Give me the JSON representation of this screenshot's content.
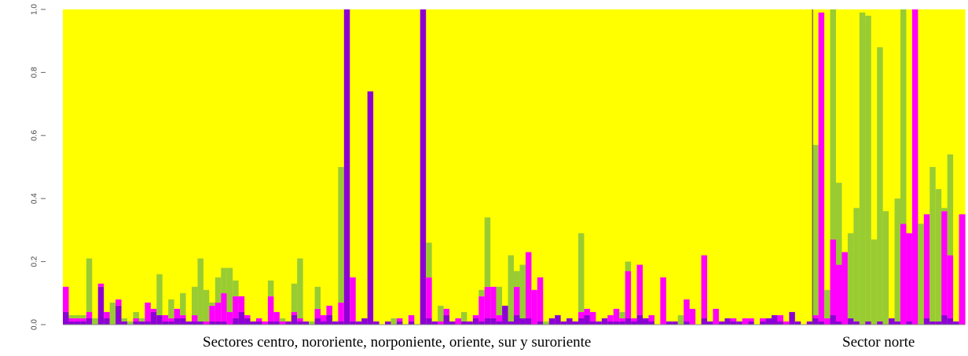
{
  "chart_data": {
    "type": "bar",
    "stacked": true,
    "normalized": true,
    "ylim": [
      0,
      1
    ],
    "yticks": [
      "0.0",
      "0.2",
      "0.4",
      "0.6",
      "0.8",
      "1.0"
    ],
    "colors": {
      "cluster_dark_purple": "#8c00d6",
      "cluster_magenta": "#ff00ff",
      "cluster_green": "#99cc33",
      "cluster_yellow": "#ffff00"
    },
    "group_labels": [
      "Sectores centro, nororiente, norponiente, oriente, sur y suroriente",
      "Sector norte"
    ],
    "group_sizes": [
      128,
      26
    ],
    "series_order": [
      "dark_purple",
      "magenta",
      "green"
    ],
    "values": {
      "dark_purple": [
        0.04,
        0.01,
        0.01,
        0.01,
        0.02,
        0.0,
        0.12,
        0.02,
        0.0,
        0.06,
        0.01,
        0.0,
        0.01,
        0.01,
        0.01,
        0.04,
        0.03,
        0.01,
        0.01,
        0.02,
        0.02,
        0.01,
        0.01,
        0.01,
        0.0,
        0.01,
        0.01,
        0.01,
        0.0,
        0.02,
        0.04,
        0.02,
        0.01,
        0.01,
        0.0,
        0.01,
        0.01,
        0.0,
        0.01,
        0.03,
        0.01,
        0.01,
        0.0,
        0.02,
        0.01,
        0.03,
        0.01,
        0.01,
        1.0,
        0.01,
        0.01,
        0.02,
        0.74,
        0.01,
        0.0,
        0.01,
        0.0,
        0.01,
        0.0,
        0.01,
        0.0,
        1.0,
        0.02,
        0.01,
        0.0,
        0.03,
        0.01,
        0.0,
        0.01,
        0.01,
        0.02,
        0.01,
        0.02,
        0.02,
        0.01,
        0.06,
        0.01,
        0.03,
        0.02,
        0.02,
        0.0,
        0.01,
        0.0,
        0.02,
        0.03,
        0.01,
        0.02,
        0.01,
        0.02,
        0.03,
        0.01,
        0.01,
        0.02,
        0.01,
        0.01,
        0.01,
        0.02,
        0.01,
        0.03,
        0.02,
        0.01,
        0.0,
        0.0,
        0.01,
        0.01,
        0.0,
        0.01,
        0.0,
        0.0,
        0.02,
        0.01,
        0.0,
        0.01,
        0.02,
        0.01,
        0.01,
        0.0,
        0.01,
        0.0,
        0.01,
        0.02,
        0.03,
        0.01,
        0.0,
        0.04,
        0.01,
        0.0,
        0.01,
        0.02,
        0.01,
        0.0,
        0.03,
        0.01,
        0.0,
        0.02,
        0.01,
        0.0,
        0.01,
        0.0,
        0.01,
        0.0,
        0.02,
        0.01,
        0.0,
        0.01,
        0.0,
        0.0,
        0.02,
        0.01,
        0.01,
        0.03,
        0.02,
        0.01,
        0.0
      ],
      "magenta": [
        0.08,
        0.01,
        0.01,
        0.01,
        0.02,
        0.0,
        0.01,
        0.02,
        0.0,
        0.02,
        0.0,
        0.0,
        0.01,
        0.0,
        0.06,
        0.01,
        0.0,
        0.02,
        0.01,
        0.03,
        0.01,
        0.0,
        0.02,
        0.0,
        0.01,
        0.05,
        0.06,
        0.09,
        0.04,
        0.07,
        0.05,
        0.01,
        0.0,
        0.01,
        0.01,
        0.08,
        0.03,
        0.01,
        0.0,
        0.01,
        0.01,
        0.0,
        0.0,
        0.03,
        0.02,
        0.03,
        0.0,
        0.06,
        0.0,
        0.14,
        0.0,
        0.0,
        0.0,
        0.0,
        0.0,
        0.0,
        0.0,
        0.01,
        0.0,
        0.02,
        0.0,
        0.0,
        0.13,
        0.0,
        0.01,
        0.02,
        0.0,
        0.02,
        0.0,
        0.0,
        0.01,
        0.08,
        0.1,
        0.1,
        0.02,
        0.0,
        0.0,
        0.09,
        0.0,
        0.21,
        0.11,
        0.14,
        0.0,
        0.0,
        0.0,
        0.0,
        0.0,
        0.0,
        0.02,
        0.02,
        0.03,
        0.0,
        0.0,
        0.02,
        0.04,
        0.01,
        0.15,
        0.01,
        0.16,
        0.0,
        0.02,
        0.0,
        0.15,
        0.0,
        0.0,
        0.0,
        0.07,
        0.05,
        0.0,
        0.2,
        0.0,
        0.05,
        0.0,
        0.0,
        0.01,
        0.0,
        0.02,
        0.01,
        0.0,
        0.01,
        0.0,
        0.0,
        0.02,
        0.01,
        0.0,
        0.0,
        0.0,
        0.0,
        0.01,
        0.98,
        0.02,
        0.24,
        0.18,
        0.23,
        0.0,
        0.0,
        0.0,
        0.0,
        0.0,
        0.0,
        0.0,
        0.0,
        0.0,
        0.32,
        0.28,
        1.0,
        0.0,
        0.33,
        0.0,
        0.0,
        0.33,
        0.2,
        0.0,
        0.35,
        0.12,
        0.0
      ],
      "green": [
        0.0,
        0.01,
        0.01,
        0.01,
        0.17,
        0.02,
        0.0,
        0.0,
        0.07,
        0.0,
        0.01,
        0.01,
        0.02,
        0.01,
        0.0,
        0.0,
        0.13,
        0.0,
        0.06,
        0.0,
        0.07,
        0.0,
        0.09,
        0.2,
        0.1,
        0.01,
        0.08,
        0.08,
        0.14,
        0.05,
        0.0,
        0.0,
        0.0,
        0.0,
        0.0,
        0.05,
        0.0,
        0.01,
        0.0,
        0.09,
        0.19,
        0.0,
        0.01,
        0.07,
        0.0,
        0.0,
        0.0,
        0.43,
        0.0,
        0.0,
        0.0,
        0.0,
        0.0,
        0.0,
        0.0,
        0.0,
        0.02,
        0.0,
        0.0,
        0.0,
        0.0,
        0.0,
        0.11,
        0.0,
        0.05,
        0.0,
        0.0,
        0.0,
        0.03,
        0.0,
        0.0,
        0.02,
        0.22,
        0.0,
        0.09,
        0.0,
        0.21,
        0.05,
        0.17,
        0.0,
        0.0,
        0.0,
        0.01,
        0.0,
        0.0,
        0.0,
        0.0,
        0.0,
        0.25,
        0.0,
        0.0,
        0.0,
        0.0,
        0.0,
        0.0,
        0.02,
        0.03,
        0.0,
        0.0,
        0.0,
        0.0,
        0.0,
        0.0,
        0.0,
        0.0,
        0.03,
        0.0,
        0.0,
        0.0,
        0.0,
        0.0,
        0.0,
        0.0,
        0.0,
        0.0,
        0.0,
        0.0,
        0.0,
        0.0,
        0.0,
        0.0,
        0.0,
        0.0,
        0.0,
        0.0,
        0.0,
        0.0,
        0.0,
        0.54,
        0.0,
        0.09,
        0.96,
        0.26,
        0.0,
        0.27,
        0.36,
        0.99,
        0.97,
        0.27,
        0.87,
        0.36,
        0.0,
        0.39,
        0.82,
        0.0,
        0.43,
        0.32,
        0.0,
        0.49,
        0.42,
        0.01,
        0.32
      ]
    }
  }
}
